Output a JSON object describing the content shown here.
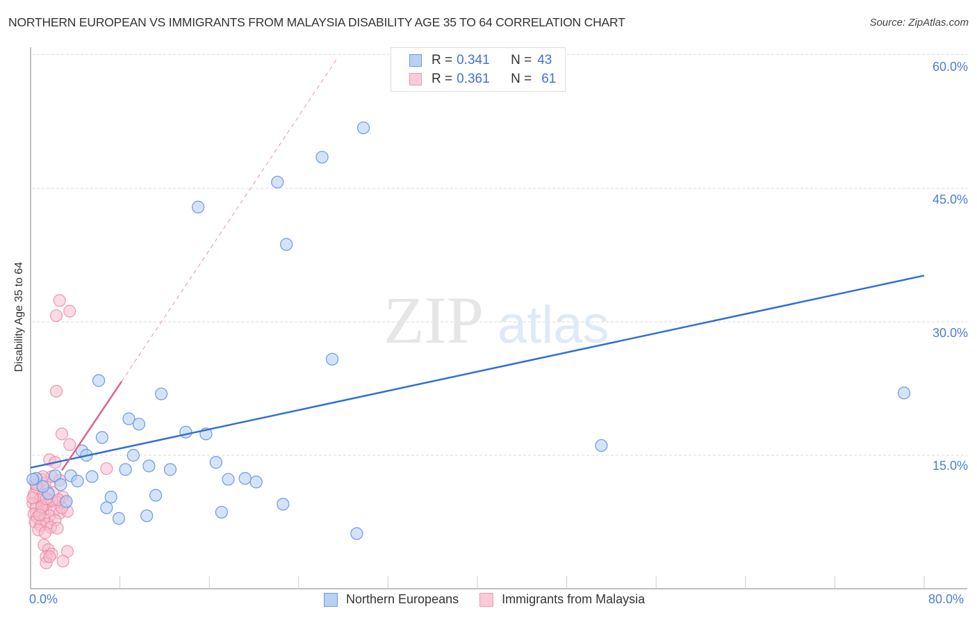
{
  "title": "NORTHERN EUROPEAN VS IMMIGRANTS FROM MALAYSIA DISABILITY AGE 35 TO 64 CORRELATION CHART",
  "source": "Source: ZipAtlas.com",
  "watermark": {
    "zip": "ZIP",
    "atlas": "atlas"
  },
  "colors": {
    "blue_fill": "#b8d1f3",
    "blue_stroke": "#6a9ae0",
    "blue_line": "#2f6fd4",
    "pink_fill": "#f6bcce",
    "pink_stroke": "#e8849f",
    "pink_line": "#e0628a",
    "axis_text": "#4a7ed8",
    "grid": "#d9d9d9"
  },
  "legend_top": {
    "rows": [
      {
        "r_label": "R = ",
        "r_value": "0.341",
        "n_label": "N = ",
        "n_value": "43",
        "series": "blue"
      },
      {
        "r_label": "R = ",
        "r_value": "0.361",
        "n_label": "N = ",
        "n_value": "61",
        "series": "pink"
      }
    ]
  },
  "legend_bottom": {
    "items": [
      {
        "label": "Northern Europeans",
        "series": "blue"
      },
      {
        "label": "Immigrants from Malaysia",
        "series": "pink"
      }
    ]
  },
  "axes": {
    "ylabel": "Disability Age 35 to 64",
    "y_ticks": [
      "60.0%",
      "45.0%",
      "30.0%",
      "15.0%"
    ],
    "x_ticks": [
      "0.0%",
      "80.0%"
    ]
  },
  "chart_data": {
    "type": "scatter",
    "title": "NORTHERN EUROPEAN VS IMMIGRANTS FROM MALAYSIA DISABILITY AGE 35 TO 64 CORRELATION CHART",
    "xlabel": "",
    "ylabel": "Disability Age 35 to 64",
    "xlim": [
      0,
      80
    ],
    "ylim": [
      0,
      62
    ],
    "grid": true,
    "legend_position": "top-center and bottom",
    "x_tick_labels": [
      "0.0%",
      "80.0%"
    ],
    "y_tick_labels": [
      "15.0%",
      "30.0%",
      "45.0%",
      "60.0%"
    ],
    "series": [
      {
        "name": "Northern Europeans",
        "R": 0.341,
        "N": 43,
        "color": "#6a9ae0",
        "trendline": {
          "x": [
            0,
            80
          ],
          "y": [
            13.6,
            35.2
          ]
        },
        "points": [
          [
            29.8,
            51.8
          ],
          [
            26.1,
            48.5
          ],
          [
            22.1,
            45.7
          ],
          [
            15.0,
            42.9
          ],
          [
            22.9,
            38.7
          ],
          [
            27.0,
            25.8
          ],
          [
            78.2,
            22.0
          ],
          [
            6.1,
            23.4
          ],
          [
            11.7,
            21.9
          ],
          [
            8.8,
            19.1
          ],
          [
            9.7,
            18.5
          ],
          [
            6.4,
            17.0
          ],
          [
            13.9,
            17.6
          ],
          [
            15.7,
            17.4
          ],
          [
            51.1,
            16.1
          ],
          [
            4.6,
            15.5
          ],
          [
            5.0,
            15.0
          ],
          [
            9.2,
            15.0
          ],
          [
            8.5,
            13.4
          ],
          [
            10.6,
            13.8
          ],
          [
            12.5,
            13.4
          ],
          [
            16.6,
            14.2
          ],
          [
            5.5,
            12.6
          ],
          [
            3.6,
            12.7
          ],
          [
            4.2,
            12.1
          ],
          [
            2.2,
            12.7
          ],
          [
            2.7,
            11.7
          ],
          [
            17.7,
            12.3
          ],
          [
            19.2,
            12.4
          ],
          [
            20.2,
            12.0
          ],
          [
            0.5,
            12.4
          ],
          [
            7.2,
            10.3
          ],
          [
            11.2,
            10.5
          ],
          [
            3.2,
            9.8
          ],
          [
            6.8,
            9.1
          ],
          [
            22.6,
            9.5
          ],
          [
            7.9,
            7.9
          ],
          [
            10.4,
            8.2
          ],
          [
            17.1,
            8.6
          ],
          [
            29.2,
            6.2
          ],
          [
            1.6,
            10.7
          ],
          [
            1.1,
            11.5
          ],
          [
            0.2,
            12.3
          ]
        ]
      },
      {
        "name": "Immigrants from Malaysia",
        "R": 0.361,
        "N": 61,
        "color": "#e8849f",
        "trendline_solid": {
          "x": [
            2.8,
            8.15
          ],
          "y": [
            13.3,
            23.3
          ]
        },
        "trendline_dashed": {
          "x": [
            8.15,
            27.4
          ],
          "y": [
            23.3,
            59.5
          ]
        },
        "points": [
          [
            2.6,
            32.4
          ],
          [
            2.3,
            30.7
          ],
          [
            3.5,
            31.2
          ],
          [
            2.3,
            22.2
          ],
          [
            2.8,
            17.4
          ],
          [
            3.5,
            16.2
          ],
          [
            1.7,
            14.5
          ],
          [
            2.2,
            14.2
          ],
          [
            6.8,
            13.5
          ],
          [
            1.0,
            12.3
          ],
          [
            0.4,
            12.0
          ],
          [
            1.3,
            11.9
          ],
          [
            1.9,
            12.6
          ],
          [
            2.6,
            12.2
          ],
          [
            0.6,
            11.2
          ],
          [
            1.5,
            11.0
          ],
          [
            0.3,
            10.6
          ],
          [
            1.1,
            10.5
          ],
          [
            2.0,
            10.8
          ],
          [
            2.9,
            10.3
          ],
          [
            0.8,
            10.0
          ],
          [
            1.6,
            9.8
          ],
          [
            0.2,
            9.6
          ],
          [
            1.2,
            9.4
          ],
          [
            2.4,
            9.7
          ],
          [
            3.1,
            9.6
          ],
          [
            0.5,
            9.1
          ],
          [
            1.4,
            8.9
          ],
          [
            0.9,
            8.6
          ],
          [
            2.1,
            8.8
          ],
          [
            0.3,
            8.4
          ],
          [
            1.7,
            8.2
          ],
          [
            2.6,
            8.5
          ],
          [
            0.6,
            8.0
          ],
          [
            1.2,
            7.8
          ],
          [
            3.3,
            8.7
          ],
          [
            0.4,
            7.5
          ],
          [
            1.5,
            7.3
          ],
          [
            2.2,
            7.7
          ],
          [
            0.9,
            7.1
          ],
          [
            1.8,
            6.9
          ],
          [
            0.7,
            6.6
          ],
          [
            2.4,
            6.8
          ],
          [
            1.3,
            6.3
          ],
          [
            0.2,
            10.2
          ],
          [
            1.0,
            9.2
          ],
          [
            1.9,
            9.9
          ],
          [
            2.8,
            9.1
          ],
          [
            0.5,
            11.7
          ],
          [
            1.4,
            10.1
          ],
          [
            1.2,
            4.9
          ],
          [
            1.6,
            4.4
          ],
          [
            1.4,
            3.6
          ],
          [
            1.9,
            3.9
          ],
          [
            3.3,
            4.2
          ],
          [
            2.9,
            3.1
          ],
          [
            1.4,
            2.9
          ],
          [
            1.7,
            3.6
          ],
          [
            0.8,
            8.3
          ],
          [
            2.5,
            10.0
          ],
          [
            1.1,
            12.6
          ]
        ]
      }
    ]
  }
}
